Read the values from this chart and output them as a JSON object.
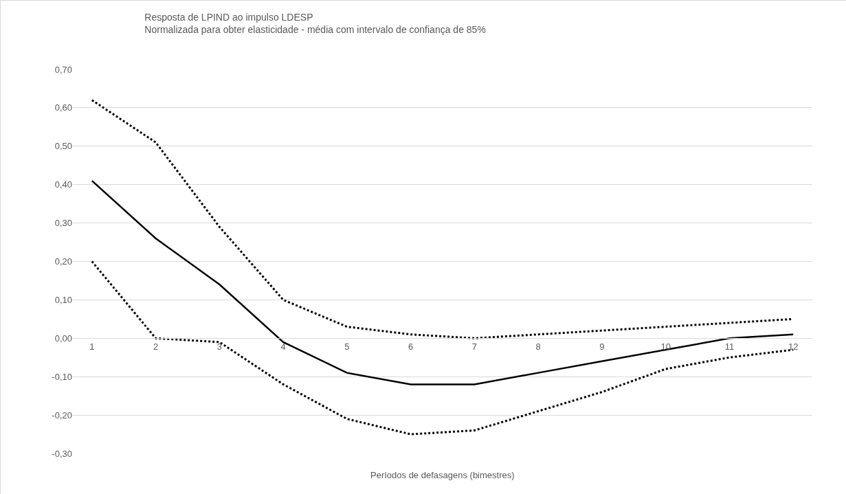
{
  "chart_data": {
    "type": "line",
    "title": "Resposta de LPIND ao impulso LDESP",
    "subtitle": "Normalizada para obter elasticidade - média com intervalo de confiança de 85%",
    "xlabel": "Períodos de defasagens (bimestres)",
    "categories": [
      "1",
      "2",
      "3",
      "4",
      "5",
      "6",
      "7",
      "8",
      "9",
      "10",
      "11",
      "12"
    ],
    "series": [
      {
        "color": "#000000",
        "line_style": "dotted",
        "values": [
          0.62,
          0.51,
          0.29,
          0.1,
          0.03,
          0.01,
          0.0,
          0.01,
          0.02,
          0.03,
          0.04,
          0.05
        ]
      },
      {
        "color": "#000000",
        "line_style": "solid",
        "values": [
          0.41,
          0.26,
          0.14,
          -0.01,
          -0.09,
          -0.12,
          -0.12,
          -0.09,
          -0.06,
          -0.03,
          0.0,
          0.01
        ]
      },
      {
        "color": "#000000",
        "line_style": "dotted",
        "values": [
          0.2,
          0.0,
          -0.01,
          -0.12,
          -0.21,
          -0.25,
          -0.24,
          -0.19,
          -0.14,
          -0.08,
          -0.05,
          -0.03
        ]
      }
    ],
    "ylim": [
      -0.3,
      0.7
    ],
    "yticks": [
      {
        "value": -0.3,
        "label": "-0,30"
      },
      {
        "value": -0.2,
        "label": "-0,20"
      },
      {
        "value": -0.1,
        "label": "-0,10"
      },
      {
        "value": 0,
        "label": "0,00"
      },
      {
        "value": 0.1,
        "label": "0,10"
      },
      {
        "value": 0.2,
        "label": "0,20"
      },
      {
        "value": 0.3,
        "label": "0,30"
      },
      {
        "value": 0.4,
        "label": "0,40"
      },
      {
        "value": 0.5,
        "label": "0,50"
      },
      {
        "value": 0.6,
        "label": "0,60"
      },
      {
        "value": 0.7,
        "label": "0,70"
      }
    ],
    "grid": "y",
    "marker": "none"
  }
}
